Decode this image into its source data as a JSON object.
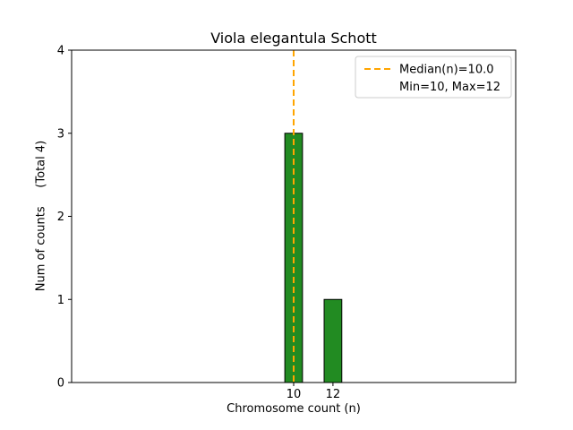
{
  "chart_data": {
    "type": "bar",
    "title": "Viola elegantula Schott",
    "xlabel": "Chromosome count (n)",
    "ylabel": "Num of counts     (Total 4)",
    "total_counts": 4,
    "x": [
      10,
      12
    ],
    "values": [
      3,
      1
    ],
    "bar_width": 0.9,
    "bar_color": "#228B22",
    "bar_edge_color": "#000000",
    "xlim": [
      -1.3,
      21.3
    ],
    "ylim": [
      0,
      4
    ],
    "xticks": [
      "10",
      "12"
    ],
    "xtick_values": [
      10,
      12
    ],
    "yticks": [
      "0",
      "1",
      "2",
      "3",
      "4"
    ],
    "ytick_values": [
      0,
      1,
      2,
      3,
      4
    ],
    "grid": false,
    "median_line": {
      "x": 10,
      "color": "#FFA500",
      "style": "dashed",
      "width": 2
    },
    "legend": {
      "position": "upper right",
      "border_color": "#cccccc",
      "entries": [
        {
          "label": "Median(n)=10.0",
          "marker": "dashed-line",
          "color": "#FFA500"
        },
        {
          "label": "Min=10, Max=12",
          "marker": "none",
          "color": ""
        }
      ]
    },
    "stats": {
      "median": "10.0",
      "min": "10",
      "max": "12"
    }
  }
}
